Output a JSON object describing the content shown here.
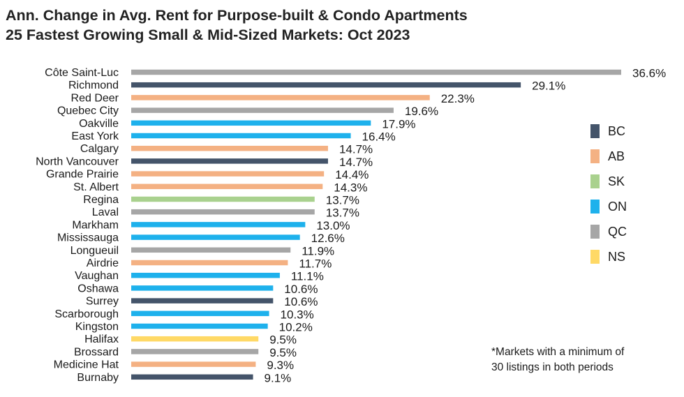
{
  "title": {
    "line1": "Ann. Change in Avg. Rent for Purpose-built & Condo Apartments",
    "line2": "25 Fastest Growing Small & Mid-Sized Markets: Oct 2023"
  },
  "footnote": {
    "line1": "*Markets with a minimum of",
    "line2": "30 listings in both periods"
  },
  "legend": [
    {
      "key": "BC",
      "label": "BC",
      "color": "#44546a"
    },
    {
      "key": "AB",
      "label": "AB",
      "color": "#f4b183"
    },
    {
      "key": "SK",
      "label": "SK",
      "color": "#a9d18e"
    },
    {
      "key": "ON",
      "label": "ON",
      "color": "#1eb1ec"
    },
    {
      "key": "QC",
      "label": "QC",
      "color": "#a6a6a6"
    },
    {
      "key": "NS",
      "label": "NS",
      "color": "#ffd966"
    }
  ],
  "chart_data": {
    "type": "bar",
    "orientation": "horizontal",
    "title": "Ann. Change in Avg. Rent for Purpose-built & Condo Apartments 25 Fastest Growing Small & Mid-Sized Markets: Oct 2023",
    "xlim": [
      0,
      37.5
    ],
    "grid": false,
    "legend_position": "right",
    "categories": [
      "Côte Saint-Luc",
      "Richmond",
      "Red Deer",
      "Quebec City",
      "Oakville",
      "East York",
      "Calgary",
      "North Vancouver",
      "Grande Prairie",
      "St. Albert",
      "Regina",
      "Laval",
      "Markham",
      "Mississauga",
      "Longueuil",
      "Airdrie",
      "Vaughan",
      "Oshawa",
      "Surrey",
      "Scarborough",
      "Kingston",
      "Halifax",
      "Brossard",
      "Medicine Hat",
      "Burnaby"
    ],
    "values": [
      36.6,
      29.1,
      22.3,
      19.6,
      17.9,
      16.4,
      14.7,
      14.7,
      14.4,
      14.3,
      13.7,
      13.7,
      13.0,
      12.6,
      11.9,
      11.7,
      11.1,
      10.6,
      10.6,
      10.3,
      10.2,
      9.5,
      9.5,
      9.3,
      9.1
    ],
    "value_labels": [
      "36.6%",
      "29.1%",
      "22.3%",
      "19.6%",
      "17.9%",
      "16.4%",
      "14.7%",
      "14.7%",
      "14.4%",
      "14.3%",
      "13.7%",
      "13.7%",
      "13.0%",
      "12.6%",
      "11.9%",
      "11.7%",
      "11.1%",
      "10.6%",
      "10.6%",
      "10.3%",
      "10.2%",
      "9.5%",
      "9.5%",
      "9.3%",
      "9.1%"
    ],
    "provinces": [
      "QC",
      "BC",
      "AB",
      "QC",
      "ON",
      "ON",
      "AB",
      "BC",
      "AB",
      "AB",
      "SK",
      "QC",
      "ON",
      "ON",
      "QC",
      "AB",
      "ON",
      "ON",
      "BC",
      "ON",
      "ON",
      "NS",
      "QC",
      "AB",
      "BC"
    ]
  }
}
